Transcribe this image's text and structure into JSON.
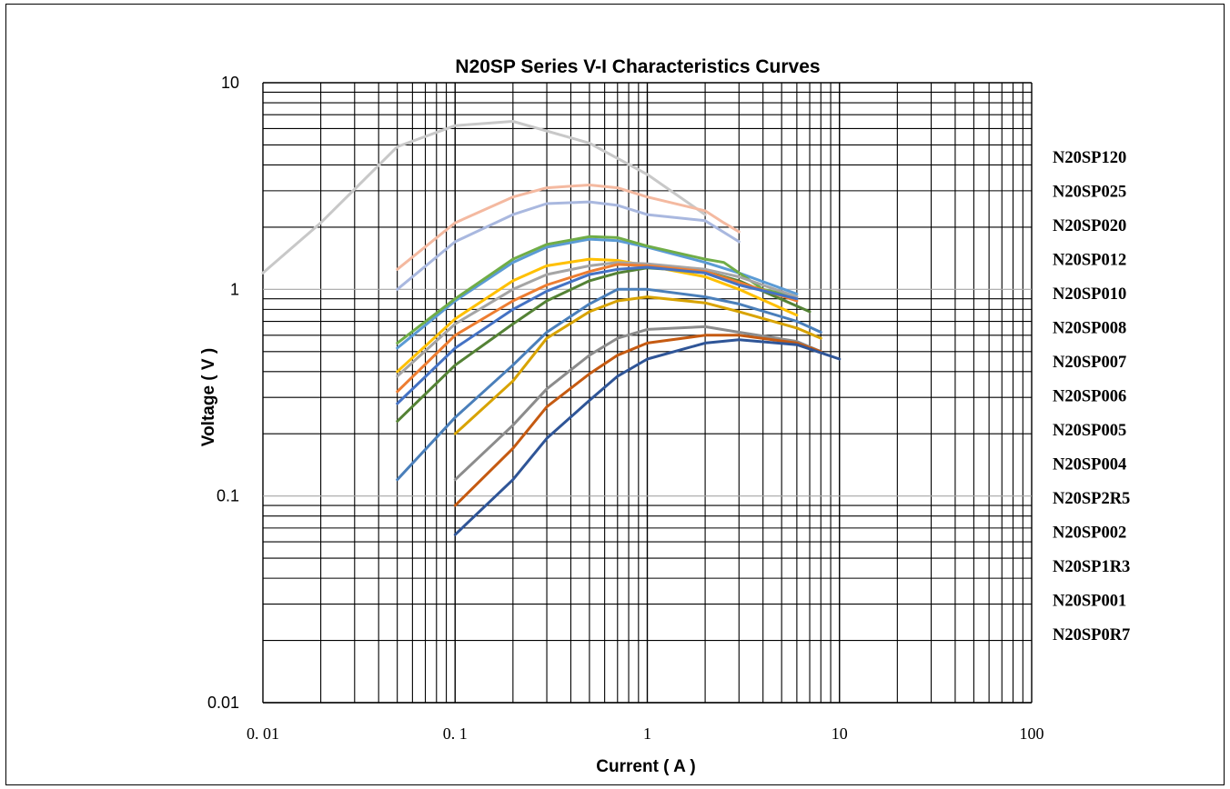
{
  "chart_data": {
    "type": "line",
    "title": "N20SP  Series  V-I Characteristics Curves",
    "xlabel": "Current ( A )",
    "ylabel": "Voltage ( V )",
    "xscale": "log",
    "yscale": "log",
    "xlim": [
      0.01,
      100
    ],
    "ylim": [
      0.01,
      10
    ],
    "x_tick_labels": [
      "0. 01",
      "0. 1",
      "1",
      "10",
      "100"
    ],
    "y_tick_labels": [
      "0.01",
      "0.1",
      "1",
      "10"
    ],
    "grid": true,
    "legend_position": "right",
    "legend": [
      "N20SP120",
      "N20SP025",
      "N20SP020",
      "N20SP012",
      "N20SP010",
      "N20SP008",
      "N20SP007",
      "N20SP006",
      "N20SP005",
      "N20SP004",
      "N20SP2R5",
      "N20SP002",
      "N20SP1R3",
      "N20SP001",
      "N20SP0R7"
    ],
    "series": [
      {
        "color": "#c8c8c8",
        "points": [
          [
            0.01,
            1.2
          ],
          [
            0.02,
            2.1
          ],
          [
            0.05,
            4.9
          ],
          [
            0.1,
            6.2
          ],
          [
            0.2,
            6.5
          ],
          [
            0.5,
            5.1
          ],
          [
            1,
            3.6
          ],
          [
            2,
            2.3
          ]
        ]
      },
      {
        "color": "#f4b9a0",
        "points": [
          [
            0.05,
            1.25
          ],
          [
            0.1,
            2.1
          ],
          [
            0.2,
            2.8
          ],
          [
            0.3,
            3.1
          ],
          [
            0.5,
            3.2
          ],
          [
            0.7,
            3.1
          ],
          [
            1,
            2.8
          ],
          [
            2,
            2.4
          ],
          [
            2.5,
            2.1
          ],
          [
            3,
            1.9
          ]
        ]
      },
      {
        "color": "#a9b8df",
        "points": [
          [
            0.05,
            1.0
          ],
          [
            0.1,
            1.7
          ],
          [
            0.2,
            2.3
          ],
          [
            0.3,
            2.6
          ],
          [
            0.5,
            2.65
          ],
          [
            0.7,
            2.55
          ],
          [
            1,
            2.3
          ],
          [
            2,
            2.15
          ],
          [
            3,
            1.7
          ]
        ]
      },
      {
        "color": "#5b9bd5",
        "points": [
          [
            0.05,
            0.52
          ],
          [
            0.1,
            0.88
          ],
          [
            0.2,
            1.35
          ],
          [
            0.3,
            1.6
          ],
          [
            0.5,
            1.75
          ],
          [
            0.7,
            1.72
          ],
          [
            1,
            1.6
          ],
          [
            2,
            1.35
          ],
          [
            3,
            1.2
          ],
          [
            6,
            0.95
          ]
        ]
      },
      {
        "color": "#70ad47",
        "points": [
          [
            0.05,
            0.55
          ],
          [
            0.1,
            0.9
          ],
          [
            0.2,
            1.4
          ],
          [
            0.3,
            1.65
          ],
          [
            0.5,
            1.8
          ],
          [
            0.7,
            1.78
          ],
          [
            1,
            1.62
          ],
          [
            2,
            1.4
          ],
          [
            2.5,
            1.35
          ],
          [
            4,
            1.0
          ],
          [
            6,
            0.92
          ]
        ]
      },
      {
        "color": "#548235",
        "points": [
          [
            0.05,
            0.23
          ],
          [
            0.1,
            0.43
          ],
          [
            0.2,
            0.68
          ],
          [
            0.3,
            0.88
          ],
          [
            0.5,
            1.1
          ],
          [
            0.7,
            1.2
          ],
          [
            1,
            1.27
          ],
          [
            2,
            1.22
          ],
          [
            3,
            1.1
          ],
          [
            7,
            0.78
          ]
        ]
      },
      {
        "color": "#ffc000",
        "points": [
          [
            0.05,
            0.4
          ],
          [
            0.1,
            0.72
          ],
          [
            0.2,
            1.1
          ],
          [
            0.3,
            1.3
          ],
          [
            0.5,
            1.4
          ],
          [
            0.7,
            1.38
          ],
          [
            1,
            1.3
          ],
          [
            2,
            1.15
          ],
          [
            3,
            1.0
          ],
          [
            6,
            0.75
          ]
        ]
      },
      {
        "color": "#a5a5a5",
        "points": [
          [
            0.05,
            0.38
          ],
          [
            0.1,
            0.68
          ],
          [
            0.2,
            1.0
          ],
          [
            0.3,
            1.18
          ],
          [
            0.5,
            1.3
          ],
          [
            0.7,
            1.35
          ],
          [
            1,
            1.33
          ],
          [
            2,
            1.25
          ],
          [
            3,
            1.15
          ],
          [
            6,
            0.92
          ]
        ]
      },
      {
        "color": "#ed7d31",
        "points": [
          [
            0.05,
            0.32
          ],
          [
            0.1,
            0.6
          ],
          [
            0.2,
            0.88
          ],
          [
            0.3,
            1.05
          ],
          [
            0.5,
            1.22
          ],
          [
            0.7,
            1.32
          ],
          [
            1,
            1.3
          ],
          [
            2,
            1.22
          ],
          [
            3,
            1.08
          ],
          [
            6,
            0.88
          ]
        ]
      },
      {
        "color": "#4472c4",
        "points": [
          [
            0.05,
            0.28
          ],
          [
            0.1,
            0.52
          ],
          [
            0.2,
            0.8
          ],
          [
            0.3,
            0.98
          ],
          [
            0.5,
            1.18
          ],
          [
            0.7,
            1.25
          ],
          [
            1,
            1.28
          ],
          [
            2,
            1.2
          ],
          [
            3,
            1.05
          ],
          [
            6,
            0.9
          ]
        ]
      },
      {
        "color": "#4a7fba",
        "points": [
          [
            0.05,
            0.12
          ],
          [
            0.1,
            0.24
          ],
          [
            0.2,
            0.43
          ],
          [
            0.3,
            0.62
          ],
          [
            0.5,
            0.85
          ],
          [
            0.7,
            1.0
          ],
          [
            1,
            1.0
          ],
          [
            2,
            0.92
          ],
          [
            3,
            0.85
          ],
          [
            6,
            0.7
          ],
          [
            8,
            0.62
          ]
        ]
      },
      {
        "color": "#d8a300",
        "points": [
          [
            0.1,
            0.2
          ],
          [
            0.2,
            0.36
          ],
          [
            0.3,
            0.58
          ],
          [
            0.5,
            0.78
          ],
          [
            0.7,
            0.88
          ],
          [
            1,
            0.92
          ],
          [
            2,
            0.86
          ],
          [
            3,
            0.78
          ],
          [
            6,
            0.65
          ],
          [
            8,
            0.58
          ]
        ]
      },
      {
        "color": "#8c8c8c",
        "points": [
          [
            0.1,
            0.12
          ],
          [
            0.2,
            0.22
          ],
          [
            0.3,
            0.33
          ],
          [
            0.5,
            0.48
          ],
          [
            0.7,
            0.58
          ],
          [
            1,
            0.64
          ],
          [
            2,
            0.66
          ],
          [
            3,
            0.62
          ],
          [
            6,
            0.56
          ],
          [
            8,
            0.5
          ]
        ]
      },
      {
        "color": "#c55a11",
        "points": [
          [
            0.1,
            0.09
          ],
          [
            0.2,
            0.17
          ],
          [
            0.3,
            0.27
          ],
          [
            0.5,
            0.39
          ],
          [
            0.7,
            0.48
          ],
          [
            1,
            0.55
          ],
          [
            2,
            0.6
          ],
          [
            3,
            0.6
          ],
          [
            6,
            0.55
          ],
          [
            8,
            0.5
          ]
        ]
      },
      {
        "color": "#2f5597",
        "points": [
          [
            0.1,
            0.065
          ],
          [
            0.2,
            0.12
          ],
          [
            0.3,
            0.19
          ],
          [
            0.5,
            0.29
          ],
          [
            0.7,
            0.38
          ],
          [
            1,
            0.46
          ],
          [
            2,
            0.55
          ],
          [
            3,
            0.57
          ],
          [
            6,
            0.54
          ],
          [
            10,
            0.46
          ]
        ]
      }
    ]
  }
}
